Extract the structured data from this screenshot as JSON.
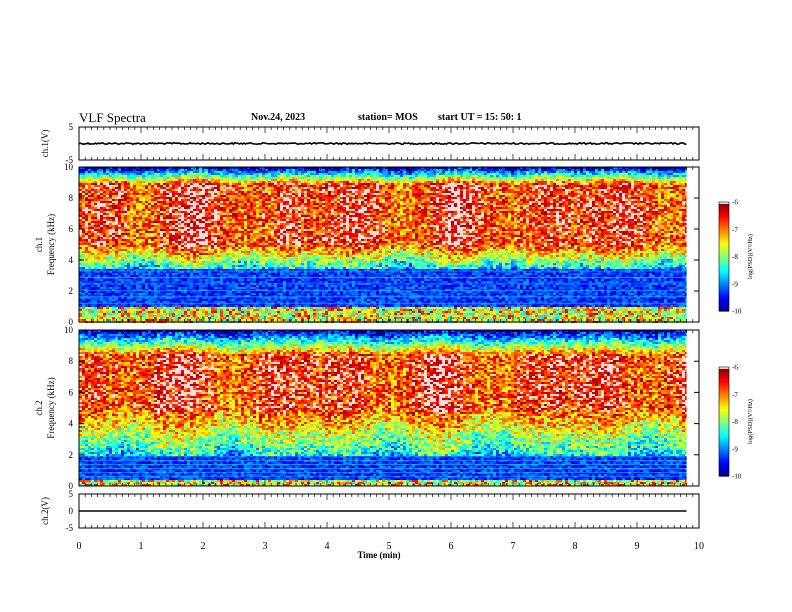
{
  "header": {
    "title": "VLF Spectra",
    "date": "Nov.24, 2023",
    "station": "station= MOS",
    "start": "start  UT =   15: 50: 1"
  },
  "chart_data": [
    {
      "type": "line",
      "name": "ch1-waveform",
      "ylabel": "ch.1(V)",
      "ylim": [
        -5,
        5
      ],
      "yticks": [
        "5",
        "-5"
      ],
      "x": [
        0,
        9.8
      ],
      "y": [
        0,
        0
      ]
    },
    {
      "type": "heatmap",
      "name": "ch1-spectrogram",
      "ylabel": "ch.1\nFrequency (kHz)",
      "ylim": [
        0,
        10
      ],
      "yticks": [
        "0",
        "2",
        "4",
        "6",
        "8",
        "10"
      ],
      "xlim": [
        0,
        9.8
      ],
      "colorbar": {
        "label": "log(PSD)(V²/Hz)",
        "range": [
          -10,
          -6
        ],
        "ticks": [
          "-6",
          "-7",
          "-8",
          "-9",
          "-10"
        ]
      },
      "strong_band_khz": [
        5,
        9
      ],
      "quiet_band_khz": [
        1,
        3.5
      ]
    },
    {
      "type": "heatmap",
      "name": "ch2-spectrogram",
      "ylabel": "ch.2\nFrequency (kHz)",
      "ylim": [
        0,
        10
      ],
      "yticks": [
        "0",
        "2",
        "4",
        "6",
        "8",
        "10"
      ],
      "xlim": [
        0,
        9.8
      ],
      "colorbar": {
        "label": "log(PSD)(V²/Hz)",
        "range": [
          -10,
          -6
        ],
        "ticks": [
          "-6",
          "-7",
          "-8",
          "-9",
          "-10"
        ]
      },
      "strong_band_khz": [
        5,
        8.5
      ],
      "quiet_band_khz": [
        0.5,
        2
      ]
    },
    {
      "type": "line",
      "name": "ch2-waveform",
      "ylabel": "ch.2(V)",
      "ylim": [
        -5,
        5
      ],
      "yticks": [
        "5",
        "0",
        "-5"
      ],
      "x": [
        0,
        9.8
      ],
      "y": [
        0,
        0
      ]
    }
  ],
  "xaxis": {
    "label": "Time  (min)",
    "xlim": [
      0,
      10
    ],
    "ticks": [
      "0",
      "1",
      "2",
      "3",
      "4",
      "5",
      "6",
      "7",
      "8",
      "9",
      "10"
    ]
  }
}
